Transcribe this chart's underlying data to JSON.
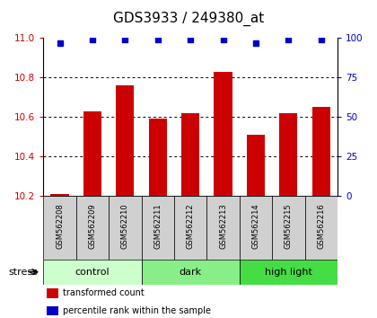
{
  "title": "GDS3933 / 249380_at",
  "samples": [
    "GSM562208",
    "GSM562209",
    "GSM562210",
    "GSM562211",
    "GSM562212",
    "GSM562213",
    "GSM562214",
    "GSM562215",
    "GSM562216"
  ],
  "bar_values": [
    10.21,
    10.63,
    10.76,
    10.59,
    10.62,
    10.83,
    10.51,
    10.62,
    10.65
  ],
  "percentile_values": [
    97,
    99,
    99,
    99,
    99,
    99,
    97,
    99,
    99
  ],
  "ylim_left": [
    10.2,
    11.0
  ],
  "ylim_right": [
    0,
    100
  ],
  "yticks_left": [
    10.2,
    10.4,
    10.6,
    10.8,
    11.0
  ],
  "yticks_right": [
    0,
    25,
    50,
    75,
    100
  ],
  "bar_color": "#cc0000",
  "dot_color": "#0000cc",
  "groups": [
    {
      "label": "control",
      "start": 0,
      "end": 3,
      "color": "#ccffcc"
    },
    {
      "label": "dark",
      "start": 3,
      "end": 6,
      "color": "#88ee88"
    },
    {
      "label": "high light",
      "start": 6,
      "end": 9,
      "color": "#44dd44"
    }
  ],
  "stress_label": "stress",
  "legend_items": [
    {
      "color": "#cc0000",
      "label": "transformed count"
    },
    {
      "color": "#0000cc",
      "label": "percentile rank within the sample"
    }
  ],
  "bar_width": 0.55,
  "title_fontsize": 11,
  "tick_fontsize": 7.5,
  "sample_fontsize": 6,
  "group_fontsize": 8,
  "legend_fontsize": 7
}
